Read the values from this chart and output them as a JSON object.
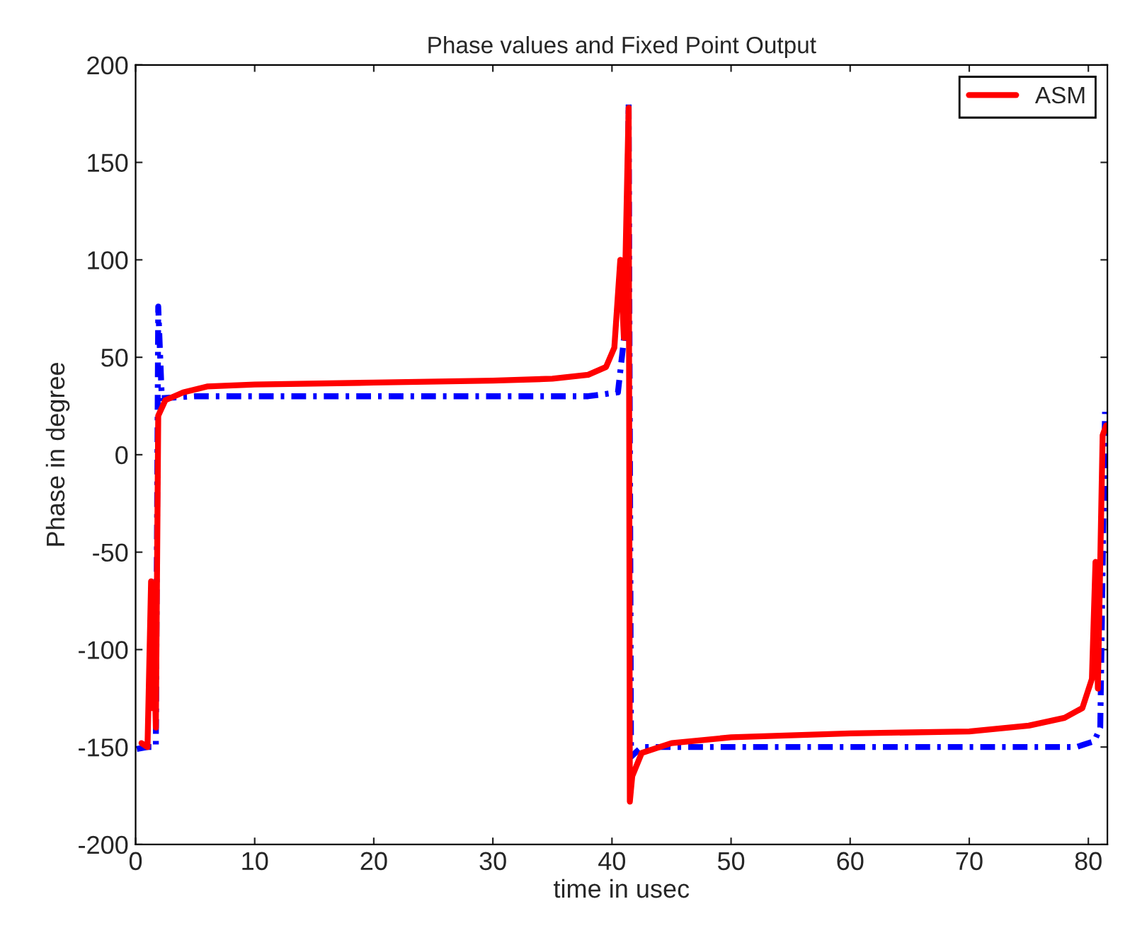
{
  "chart_data": {
    "type": "line",
    "title": "Phase values and Fixed Point Output",
    "xlabel": "time in usec",
    "ylabel": "Phase in degree",
    "xlim": [
      0,
      81.6
    ],
    "xticks": [
      0,
      10,
      20,
      30,
      40,
      50,
      60,
      70,
      80
    ],
    "ylim": [
      -200,
      200
    ],
    "yticks": [
      -200,
      -150,
      -100,
      -50,
      0,
      50,
      100,
      150,
      200
    ],
    "grid": false,
    "legend": "top right",
    "series": [
      {
        "color": "#0000ff",
        "line_style": "dashdot",
        "x": [
          0.1,
          1.0,
          1.7,
          1.9,
          2.2,
          5,
          10,
          20,
          30,
          38,
          40.5,
          41.2,
          41.4,
          41.6,
          42.5,
          50,
          60,
          70,
          79,
          80.5,
          81.0,
          81.4
        ],
        "values": [
          -151,
          -150,
          -150,
          76,
          29,
          30,
          30,
          30,
          30,
          30,
          32,
          70,
          180,
          -155,
          -150,
          -150,
          -150,
          -150,
          -150,
          -147,
          -140,
          22
        ]
      },
      {
        "name": "ASM",
        "color": "#ff0000",
        "line_style": "solid",
        "x": [
          0.5,
          1.0,
          1.3,
          1.4,
          1.5,
          1.7,
          1.9,
          2.5,
          4,
          6,
          10,
          20,
          30,
          35,
          38,
          39.5,
          40.2,
          40.7,
          41.0,
          41.4,
          41.5,
          41.7,
          42.5,
          45,
          50,
          60,
          70,
          75,
          78,
          79.5,
          80.3,
          80.6,
          80.8,
          81.2,
          81.5
        ],
        "values": [
          -148,
          -150,
          -65,
          -130,
          -90,
          -140,
          20,
          28,
          32,
          35,
          36,
          37,
          38,
          39,
          41,
          45,
          55,
          100,
          60,
          178,
          -178,
          -165,
          -153,
          -148,
          -145,
          -143,
          -142,
          -139,
          -135,
          -130,
          -115,
          -55,
          -120,
          10,
          15
        ]
      }
    ]
  }
}
